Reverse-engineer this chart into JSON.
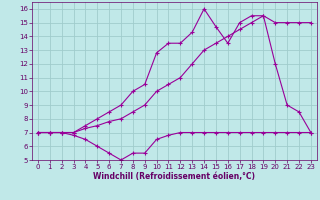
{
  "xlabel": "Windchill (Refroidissement éolien,°C)",
  "bg_color": "#c0e8e8",
  "grid_color": "#a0cccc",
  "line_color": "#990099",
  "xlim": [
    -0.5,
    23.5
  ],
  "ylim": [
    5,
    16.5
  ],
  "xticks": [
    0,
    1,
    2,
    3,
    4,
    5,
    6,
    7,
    8,
    9,
    10,
    11,
    12,
    13,
    14,
    15,
    16,
    17,
    18,
    19,
    20,
    21,
    22,
    23
  ],
  "yticks": [
    5,
    6,
    7,
    8,
    9,
    10,
    11,
    12,
    13,
    14,
    15,
    16
  ],
  "line1_x": [
    0,
    1,
    2,
    3,
    4,
    5,
    6,
    7,
    8,
    9,
    10,
    11,
    12,
    13,
    14,
    15,
    16,
    17,
    18,
    19,
    20,
    21,
    22,
    23
  ],
  "line1_y": [
    7.0,
    7.0,
    7.0,
    6.8,
    6.5,
    6.0,
    5.5,
    5.0,
    5.5,
    5.5,
    6.5,
    6.8,
    7.0,
    7.0,
    7.0,
    7.0,
    7.0,
    7.0,
    7.0,
    7.0,
    7.0,
    7.0,
    7.0,
    7.0
  ],
  "line2_x": [
    0,
    1,
    2,
    3,
    4,
    5,
    6,
    7,
    8,
    9,
    10,
    11,
    12,
    13,
    14,
    15,
    16,
    17,
    18,
    19,
    20,
    21,
    22,
    23
  ],
  "line2_y": [
    7.0,
    7.0,
    7.0,
    7.0,
    7.3,
    7.5,
    7.8,
    8.0,
    8.5,
    9.0,
    10.0,
    10.5,
    11.0,
    12.0,
    13.0,
    13.5,
    14.0,
    14.5,
    15.0,
    15.5,
    12.0,
    9.0,
    8.5,
    7.0
  ],
  "line3_x": [
    0,
    1,
    2,
    3,
    4,
    5,
    6,
    7,
    8,
    9,
    10,
    11,
    12,
    13,
    14,
    15,
    16,
    17,
    18,
    19,
    20,
    21,
    22,
    23
  ],
  "line3_y": [
    7.0,
    7.0,
    7.0,
    7.0,
    7.5,
    8.0,
    8.5,
    9.0,
    10.0,
    10.5,
    12.8,
    13.5,
    13.5,
    14.3,
    16.0,
    14.7,
    13.5,
    15.0,
    15.5,
    15.5,
    15.0,
    15.0,
    15.0,
    15.0
  ],
  "font_color": "#660066",
  "tick_fontsize": 5.0,
  "label_fontsize": 5.5
}
